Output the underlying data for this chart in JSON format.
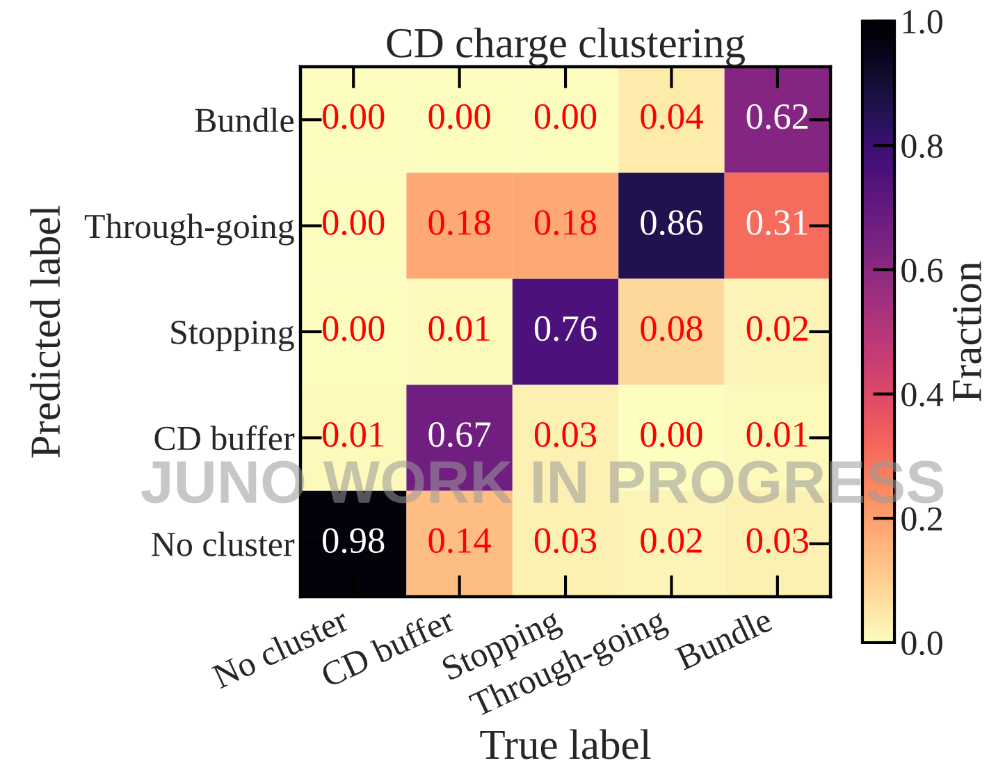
{
  "chart_data": {
    "type": "heatmap",
    "title": "CD charge clustering",
    "xlabel": "True label",
    "ylabel": "Predicted label",
    "clabel": "Fraction",
    "categories": [
      "No cluster",
      "CD buffer",
      "Stopping",
      "Through-going",
      "Bundle"
    ],
    "y_categories": [
      "Bundle",
      "Through-going",
      "Stopping",
      "CD buffer",
      "No cluster"
    ],
    "cells": [
      [
        0.0,
        0.0,
        0.0,
        0.04,
        0.62
      ],
      [
        0.0,
        0.18,
        0.18,
        0.86,
        0.31
      ],
      [
        0.0,
        0.01,
        0.76,
        0.08,
        0.02
      ],
      [
        0.01,
        0.67,
        0.03,
        0.0,
        0.01
      ],
      [
        0.98,
        0.14,
        0.03,
        0.02,
        0.03
      ]
    ],
    "cell_labels": [
      [
        "0.00",
        "0.00",
        "0.00",
        "0.04",
        "0.62"
      ],
      [
        "0.00",
        "0.18",
        "0.18",
        "0.86",
        "0.31"
      ],
      [
        "0.00",
        "0.01",
        "0.76",
        "0.08",
        "0.02"
      ],
      [
        "0.01",
        "0.67",
        "0.03",
        "0.00",
        "0.01"
      ],
      [
        "0.98",
        "0.14",
        "0.03",
        "0.02",
        "0.03"
      ]
    ],
    "clim": [
      0,
      1
    ],
    "cticks": [
      {
        "value": 0,
        "label": "0.0"
      },
      0.2,
      0.4,
      0.6,
      0.8,
      {
        "value": 1,
        "label": "1.0"
      }
    ],
    "annotations": [
      "JUNO WORK IN PROGRESS"
    ]
  }
}
